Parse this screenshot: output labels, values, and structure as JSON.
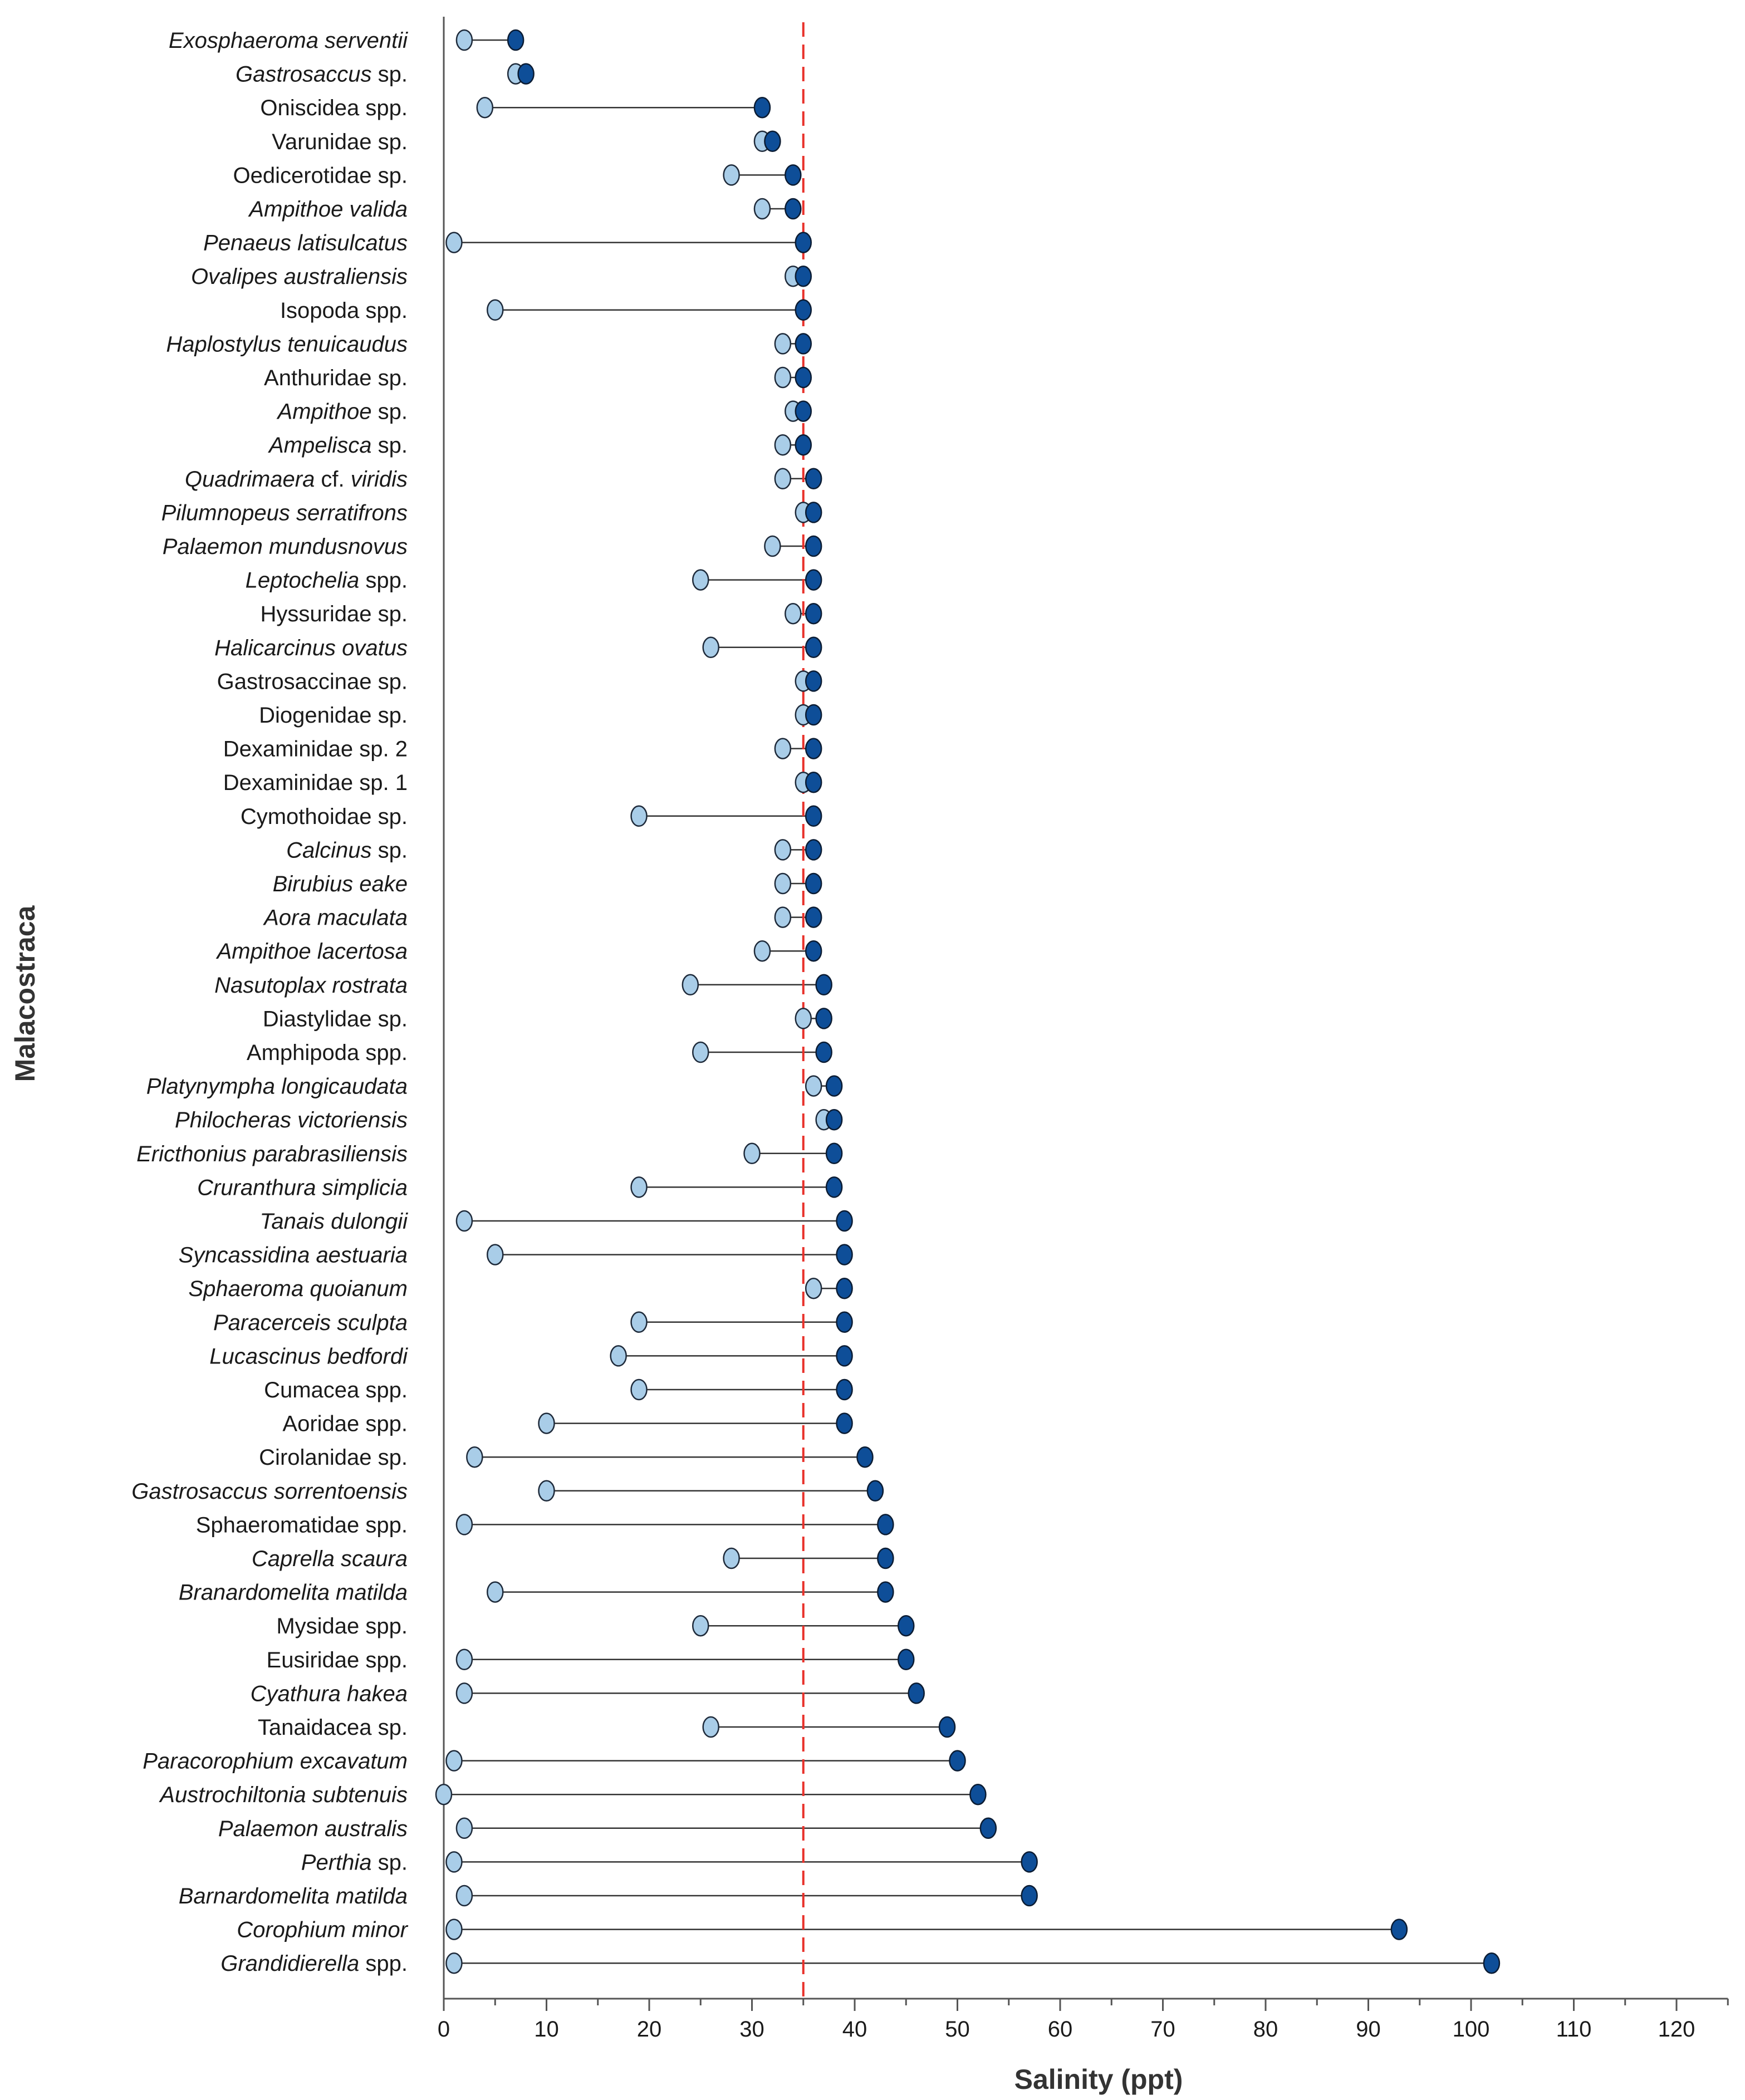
{
  "chart_data": {
    "type": "dumbbell",
    "xlabel": "Salinity (ppt)",
    "ylabel": "Malacostraca",
    "xlim": [
      0,
      125
    ],
    "x_ticks": [
      "0",
      "10",
      "20",
      "30",
      "40",
      "50",
      "60",
      "70",
      "80",
      "90",
      "100",
      "110",
      "120"
    ],
    "reference_line": {
      "value": 35,
      "style": "dashed",
      "color": "#e8312a"
    },
    "colors": {
      "min": "#a9cde8",
      "max": "#0e4e98",
      "line": "#333333",
      "axis": "#555555"
    },
    "species": [
      {
        "name": "Exosphaeroma serventii",
        "italic": [
          "Exosphaeroma serventii"
        ],
        "rest": "",
        "min": 2,
        "max": 7
      },
      {
        "name": "Gastrosaccus sp.",
        "italic": [
          "Gastrosaccus"
        ],
        "rest": " sp.",
        "min": 7,
        "max": 8
      },
      {
        "name": "Oniscidea spp.",
        "italic": [],
        "rest": "Oniscidea spp.",
        "min": 4,
        "max": 31
      },
      {
        "name": "Varunidae sp.",
        "italic": [],
        "rest": "Varunidae sp.",
        "min": 31,
        "max": 32
      },
      {
        "name": "Oedicerotidae sp.",
        "italic": [],
        "rest": "Oedicerotidae sp.",
        "min": 28,
        "max": 34
      },
      {
        "name": "Ampithoe valida",
        "italic": [
          "Ampithoe valida"
        ],
        "rest": "",
        "min": 31,
        "max": 34
      },
      {
        "name": "Penaeus latisulcatus",
        "italic": [
          "Penaeus latisulcatus"
        ],
        "rest": "",
        "min": 1,
        "max": 35
      },
      {
        "name": "Ovalipes australiensis",
        "italic": [
          "Ovalipes australiensis"
        ],
        "rest": "",
        "min": 34,
        "max": 35
      },
      {
        "name": "Isopoda spp.",
        "italic": [],
        "rest": "Isopoda spp.",
        "min": 5,
        "max": 35
      },
      {
        "name": "Haplostylus tenuicaudus",
        "italic": [
          "Haplostylus tenuicaudus"
        ],
        "rest": "",
        "min": 33,
        "max": 35
      },
      {
        "name": "Anthuridae sp.",
        "italic": [],
        "rest": "Anthuridae sp.",
        "min": 33,
        "max": 35
      },
      {
        "name": "Ampithoe sp.",
        "italic": [
          "Ampithoe"
        ],
        "rest": " sp.",
        "min": 34,
        "max": 35
      },
      {
        "name": "Ampelisca sp.",
        "italic": [
          "Ampelisca"
        ],
        "rest": " sp.",
        "min": 33,
        "max": 35
      },
      {
        "name": "Quadrimaera cf. viridis",
        "italic": [
          "Quadrimaera",
          " cf. ",
          "viridis"
        ],
        "rest": "",
        "min": 33,
        "max": 36
      },
      {
        "name": "Pilumnopeus serratifrons",
        "italic": [
          "Pilumnopeus serratifrons"
        ],
        "rest": "",
        "min": 35,
        "max": 36
      },
      {
        "name": "Palaemon mundusnovus",
        "italic": [
          "Palaemon mundusnovus"
        ],
        "rest": "",
        "min": 32,
        "max": 36
      },
      {
        "name": "Leptochelia spp.",
        "italic": [
          "Leptochelia"
        ],
        "rest": " spp.",
        "min": 25,
        "max": 36
      },
      {
        "name": "Hyssuridae sp.",
        "italic": [],
        "rest": "Hyssuridae sp.",
        "min": 34,
        "max": 36
      },
      {
        "name": "Halicarcinus ovatus",
        "italic": [
          "Halicarcinus ovatus"
        ],
        "rest": "",
        "min": 26,
        "max": 36
      },
      {
        "name": "Gastrosaccinae sp.",
        "italic": [],
        "rest": "Gastrosaccinae sp.",
        "min": 35,
        "max": 36
      },
      {
        "name": "Diogenidae sp.",
        "italic": [],
        "rest": "Diogenidae sp.",
        "min": 35,
        "max": 36
      },
      {
        "name": "Dexaminidae sp. 2",
        "italic": [],
        "rest": "Dexaminidae sp. 2",
        "min": 33,
        "max": 36
      },
      {
        "name": "Dexaminidae sp. 1",
        "italic": [],
        "rest": "Dexaminidae sp. 1",
        "min": 35,
        "max": 36
      },
      {
        "name": "Cymothoidae sp.",
        "italic": [],
        "rest": "Cymothoidae sp.",
        "min": 19,
        "max": 36
      },
      {
        "name": "Calcinus sp.",
        "italic": [
          "Calcinus"
        ],
        "rest": " sp.",
        "min": 33,
        "max": 36
      },
      {
        "name": "Birubius eake",
        "italic": [
          "Birubius eake"
        ],
        "rest": "",
        "min": 33,
        "max": 36
      },
      {
        "name": "Aora maculata",
        "italic": [
          "Aora maculata"
        ],
        "rest": "",
        "min": 33,
        "max": 36
      },
      {
        "name": "Ampithoe lacertosa",
        "italic": [
          "Ampithoe lacertosa"
        ],
        "rest": "",
        "min": 31,
        "max": 36
      },
      {
        "name": "Nasutoplax rostrata",
        "italic": [
          "Nasutoplax rostrata"
        ],
        "rest": "",
        "min": 24,
        "max": 37
      },
      {
        "name": "Diastylidae sp.",
        "italic": [],
        "rest": "Diastylidae sp.",
        "min": 35,
        "max": 37
      },
      {
        "name": "Amphipoda spp.",
        "italic": [],
        "rest": "Amphipoda spp.",
        "min": 25,
        "max": 37
      },
      {
        "name": "Platynympha longicaudata",
        "italic": [
          "Platynympha longicaudata"
        ],
        "rest": "",
        "min": 36,
        "max": 38
      },
      {
        "name": "Philocheras victoriensis",
        "italic": [
          "Philocheras victoriensis"
        ],
        "rest": "",
        "min": 37,
        "max": 38
      },
      {
        "name": "Ericthonius parabrasiliensis",
        "italic": [
          "Ericthonius parabrasiliensis"
        ],
        "rest": "",
        "min": 30,
        "max": 38
      },
      {
        "name": "Cruranthura simplicia",
        "italic": [
          "Cruranthura simplicia"
        ],
        "rest": "",
        "min": 19,
        "max": 38
      },
      {
        "name": "Tanais dulongii",
        "italic": [
          "Tanais dulongii"
        ],
        "rest": "",
        "min": 2,
        "max": 39
      },
      {
        "name": "Syncassidina aestuaria",
        "italic": [
          "Syncassidina aestuaria"
        ],
        "rest": "",
        "min": 5,
        "max": 39
      },
      {
        "name": "Sphaeroma quoianum",
        "italic": [
          "Sphaeroma quoianum"
        ],
        "rest": "",
        "min": 36,
        "max": 39
      },
      {
        "name": "Paracerceis sculpta",
        "italic": [
          "Paracerceis sculpta"
        ],
        "rest": "",
        "min": 19,
        "max": 39
      },
      {
        "name": "Lucascinus bedfordi",
        "italic": [
          "Lucascinus bedfordi"
        ],
        "rest": "",
        "min": 17,
        "max": 39
      },
      {
        "name": "Cumacea spp.",
        "italic": [],
        "rest": "Cumacea spp.",
        "min": 19,
        "max": 39
      },
      {
        "name": "Aoridae spp.",
        "italic": [],
        "rest": "Aoridae spp.",
        "min": 10,
        "max": 39
      },
      {
        "name": "Cirolanidae sp.",
        "italic": [],
        "rest": "Cirolanidae sp.",
        "min": 3,
        "max": 41
      },
      {
        "name": "Gastrosaccus sorrentoensis",
        "italic": [
          "Gastrosaccus sorrentoensis"
        ],
        "rest": "",
        "min": 10,
        "max": 42
      },
      {
        "name": "Sphaeromatidae spp.",
        "italic": [],
        "rest": "Sphaeromatidae spp.",
        "min": 2,
        "max": 43
      },
      {
        "name": "Caprella scaura",
        "italic": [
          "Caprella scaura"
        ],
        "rest": "",
        "min": 28,
        "max": 43
      },
      {
        "name": "Branardomelita matilda",
        "italic": [
          "Branardomelita matilda"
        ],
        "rest": "",
        "min": 5,
        "max": 43
      },
      {
        "name": "Mysidae spp.",
        "italic": [],
        "rest": "Mysidae spp.",
        "min": 25,
        "max": 45
      },
      {
        "name": "Eusiridae spp.",
        "italic": [],
        "rest": "Eusiridae spp.",
        "min": 2,
        "max": 45
      },
      {
        "name": "Cyathura hakea",
        "italic": [
          "Cyathura hakea"
        ],
        "rest": "",
        "min": 2,
        "max": 46
      },
      {
        "name": "Tanaidacea sp.",
        "italic": [],
        "rest": "Tanaidacea sp.",
        "min": 26,
        "max": 49
      },
      {
        "name": "Paracorophium excavatum",
        "italic": [
          "Paracorophium excavatum"
        ],
        "rest": "",
        "min": 1,
        "max": 50
      },
      {
        "name": "Austrochiltonia subtenuis",
        "italic": [
          "Austrochiltonia subtenuis"
        ],
        "rest": "",
        "min": 0,
        "max": 52
      },
      {
        "name": "Palaemon australis",
        "italic": [
          "Palaemon australis"
        ],
        "rest": "",
        "min": 2,
        "max": 53
      },
      {
        "name": "Perthia sp.",
        "italic": [
          "Perthia"
        ],
        "rest": " sp.",
        "min": 1,
        "max": 57
      },
      {
        "name": "Barnardomelita matilda",
        "italic": [
          "Barnardomelita matilda"
        ],
        "rest": "",
        "min": 2,
        "max": 57
      },
      {
        "name": "Corophium minor",
        "italic": [
          "Corophium minor"
        ],
        "rest": "",
        "min": 1,
        "max": 93
      },
      {
        "name": "Grandidierella spp.",
        "italic": [
          "Grandidierella"
        ],
        "rest": " spp.",
        "min": 1,
        "max": 102
      }
    ]
  }
}
